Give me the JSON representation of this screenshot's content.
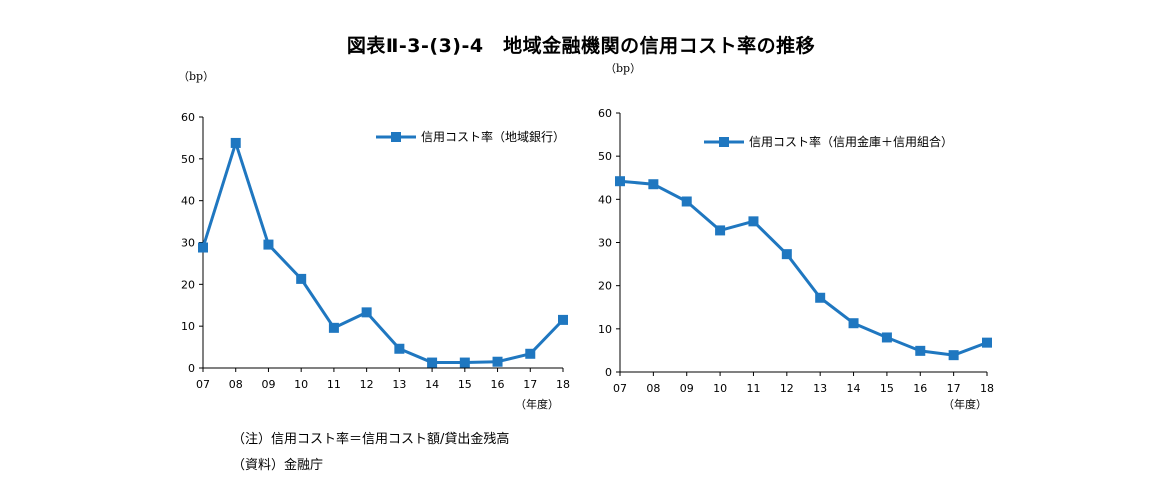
{
  "figure_title": "図表Ⅱ-3-(3)-4　地域金融機関の信用コスト率の推移",
  "notes": {
    "note1": "（注）信用コスト率＝信用コスト額/貸出金残高",
    "note2": "（資料）金融庁"
  },
  "colors": {
    "series": "#1f77c0",
    "axis": "#000000"
  },
  "chart_data": [
    {
      "type": "line",
      "unit_label": "（bp）",
      "x_suffix_label": "（年度）",
      "categories": [
        "07",
        "08",
        "09",
        "10",
        "11",
        "12",
        "13",
        "14",
        "15",
        "16",
        "17",
        "18"
      ],
      "series": [
        {
          "name": "信用コスト率（地域銀行）",
          "values": [
            28.8,
            53.8,
            29.5,
            21.3,
            9.6,
            13.3,
            4.6,
            1.3,
            1.3,
            1.5,
            3.4,
            11.5
          ]
        }
      ],
      "ylim": [
        0,
        60
      ],
      "yticks": [
        0,
        10,
        20,
        30,
        40,
        50,
        60
      ],
      "legend": "top-right",
      "marker": "square",
      "grid": false
    },
    {
      "type": "line",
      "unit_label": "（bp）",
      "x_suffix_label": "（年度）",
      "categories": [
        "07",
        "08",
        "09",
        "10",
        "11",
        "12",
        "13",
        "14",
        "15",
        "16",
        "17",
        "18"
      ],
      "series": [
        {
          "name": "信用コスト率（信用金庫＋信用組合）",
          "values": [
            44.2,
            43.5,
            39.5,
            32.8,
            34.9,
            27.3,
            17.2,
            11.3,
            8.0,
            4.9,
            3.9,
            6.8
          ]
        }
      ],
      "ylim": [
        0,
        60
      ],
      "yticks": [
        0,
        10,
        20,
        30,
        40,
        50,
        60
      ],
      "legend": "top-right",
      "marker": "square",
      "grid": false
    }
  ]
}
